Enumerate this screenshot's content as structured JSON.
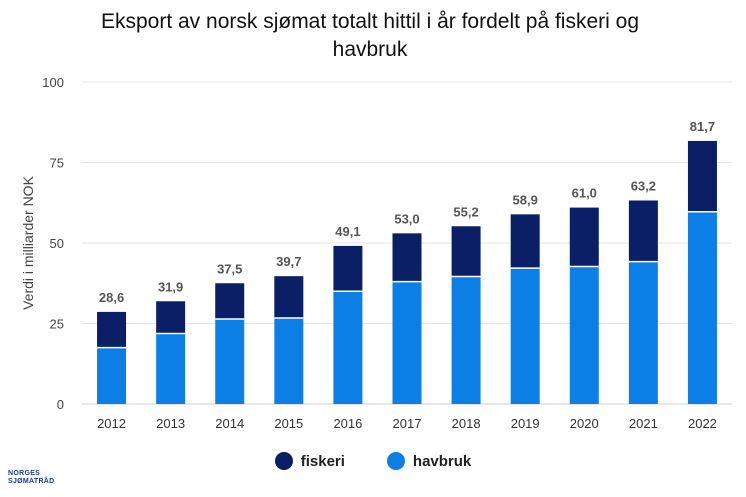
{
  "title_line1": "Eksport av norsk sjømat totalt hittil i år fordelt på fiskeri og",
  "title_line2": "havbruk",
  "logo_line1": "NORGES",
  "logo_line2": "SJØMATRÅD",
  "chart_data": {
    "type": "bar",
    "stacked": true,
    "title": "Eksport av norsk sjømat totalt hittil i år fordelt på fiskeri og havbruk",
    "ylabel": "Verdi i milliarder NOK",
    "xlabel": "",
    "ylim": [
      0,
      100
    ],
    "yticks": [
      0,
      25,
      50,
      75,
      100
    ],
    "grid": true,
    "legend_position": "bottom",
    "categories": [
      "2012",
      "2013",
      "2014",
      "2015",
      "2016",
      "2017",
      "2018",
      "2019",
      "2020",
      "2021",
      "2022"
    ],
    "series": [
      {
        "name": "havbruk",
        "color": "#0c7fe6",
        "values": [
          17.5,
          21.9,
          26.4,
          26.7,
          35.0,
          38.0,
          39.6,
          42.2,
          42.7,
          44.2,
          59.7
        ]
      },
      {
        "name": "fiskeri",
        "color": "#0b1f66",
        "values": [
          11.1,
          10.0,
          11.1,
          13.0,
          14.1,
          15.0,
          15.6,
          16.7,
          18.3,
          19.0,
          22.0
        ]
      }
    ],
    "totals": [
      "28,6",
      "31,9",
      "37,5",
      "39,7",
      "49,1",
      "53,0",
      "55,2",
      "58,9",
      "61,0",
      "63,2",
      "81,7"
    ]
  }
}
